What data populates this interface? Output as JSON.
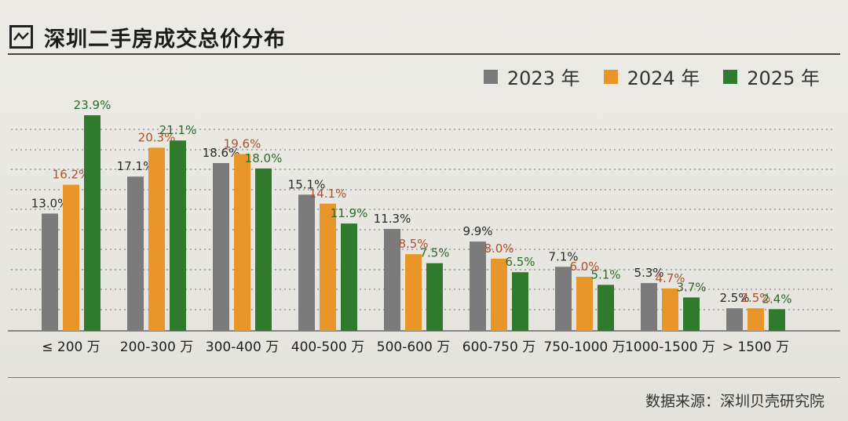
{
  "title": "深圳二手房成交总价分布",
  "source": "数据来源：深圳贝壳研究院",
  "colors": {
    "s2023": "#7b7b7b",
    "s2024": "#e8952a",
    "s2025": "#2f7a2c",
    "label2023": "#2a2a2a",
    "label2024": "#b0502a",
    "label2025": "#2f6a2a",
    "grid": "#9a9a9a",
    "axis": "#666666",
    "tick": "#1f1f1f"
  },
  "legend": [
    {
      "label": "2023 年",
      "color": "#7b7b7b"
    },
    {
      "label": "2024 年",
      "color": "#e8952a"
    },
    {
      "label": "2025 年",
      "color": "#2f7a2c"
    }
  ],
  "chart_data": {
    "type": "bar",
    "title": "深圳二手房成交总价分布",
    "xlabel": "",
    "ylabel": "",
    "ylim": [
      0,
      25
    ],
    "grid": true,
    "legend_position": "top-right",
    "categories": [
      "≤ 200 万",
      "200-300 万",
      "300-400 万",
      "400-500 万",
      "500-600 万",
      "600-750 万",
      "750-1000 万",
      "1000-1500 万",
      "> 1500 万"
    ],
    "series": [
      {
        "name": "2023 年",
        "values": [
          13.0,
          17.1,
          18.6,
          15.1,
          11.3,
          9.9,
          7.1,
          5.3,
          2.5
        ],
        "labels": [
          "13.0%",
          "17.1%",
          "18.6%",
          "15.1%",
          "11.3%",
          "9.9%",
          "7.1%",
          "5.3%",
          "2.5%"
        ]
      },
      {
        "name": "2024 年",
        "values": [
          16.2,
          20.3,
          19.6,
          14.1,
          8.5,
          8.0,
          6.0,
          4.7,
          2.5
        ],
        "labels": [
          "16.2%",
          "20.3%",
          "19.6%",
          "14.1%",
          "8.5%",
          "8.0%",
          "6.0%",
          "4.7%",
          "2.5%"
        ]
      },
      {
        "name": "2025 年",
        "values": [
          23.9,
          21.1,
          18.0,
          11.9,
          7.5,
          6.5,
          5.1,
          3.7,
          2.4
        ],
        "labels": [
          "23.9%",
          "21.1%",
          "18.0%",
          "11.9%",
          "7.5%",
          "6.5%",
          "5.1%",
          "3.7%",
          "2.4%"
        ]
      }
    ]
  }
}
